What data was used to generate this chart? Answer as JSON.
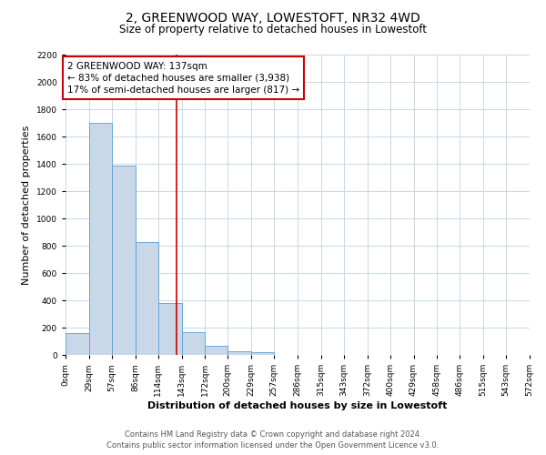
{
  "title": "2, GREENWOOD WAY, LOWESTOFT, NR32 4WD",
  "subtitle": "Size of property relative to detached houses in Lowestoft",
  "xlabel": "Distribution of detached houses by size in Lowestoft",
  "ylabel": "Number of detached properties",
  "bar_edges": [
    0,
    29,
    57,
    86,
    114,
    143,
    172,
    200,
    229,
    257,
    286,
    315,
    343,
    372,
    400,
    429,
    458,
    486,
    515,
    543,
    572
  ],
  "bar_heights": [
    160,
    1700,
    1390,
    830,
    380,
    165,
    65,
    30,
    20,
    0,
    0,
    0,
    0,
    0,
    0,
    0,
    0,
    0,
    0,
    0
  ],
  "bar_color": "#c8d8e8",
  "bar_edge_color": "#5a9fd4",
  "vline_color": "#cc0000",
  "vline_x": 137,
  "ylim": [
    0,
    2200
  ],
  "ytick_step": 200,
  "xtick_labels": [
    "0sqm",
    "29sqm",
    "57sqm",
    "86sqm",
    "114sqm",
    "143sqm",
    "172sqm",
    "200sqm",
    "229sqm",
    "257sqm",
    "286sqm",
    "315sqm",
    "343sqm",
    "372sqm",
    "400sqm",
    "429sqm",
    "458sqm",
    "486sqm",
    "515sqm",
    "543sqm",
    "572sqm"
  ],
  "annotation_title": "2 GREENWOOD WAY: 137sqm",
  "annotation_line1": "← 83% of detached houses are smaller (3,938)",
  "annotation_line2": "17% of semi-detached houses are larger (817) →",
  "annotation_box_color": "#ffffff",
  "annotation_box_edge_color": "#cc0000",
  "footer_line1": "Contains HM Land Registry data © Crown copyright and database right 2024.",
  "footer_line2": "Contains public sector information licensed under the Open Government Licence v3.0.",
  "background_color": "#ffffff",
  "grid_color": "#c8d8e8",
  "title_fontsize": 10,
  "subtitle_fontsize": 8.5,
  "axis_label_fontsize": 8,
  "tick_fontsize": 6.5,
  "annotation_fontsize": 7.5,
  "footer_fontsize": 6
}
